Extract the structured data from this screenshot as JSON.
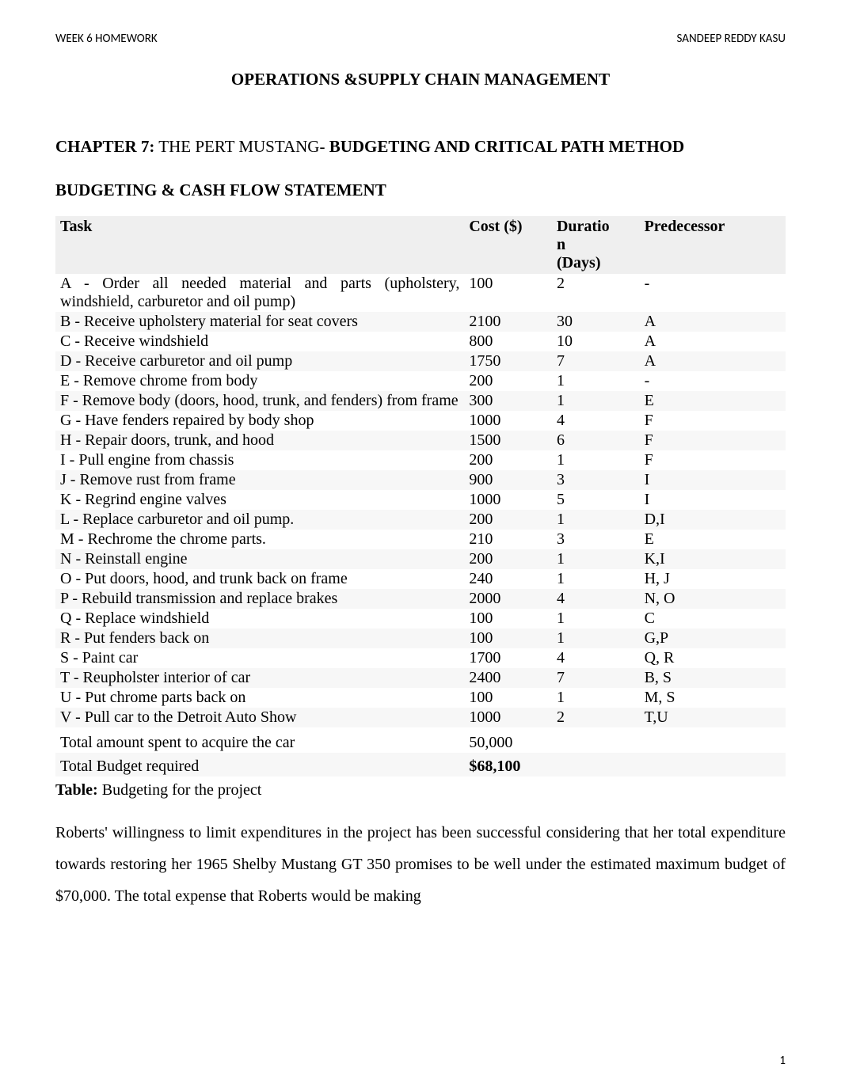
{
  "header": {
    "left": "WEEK 6 HOMEWORK",
    "right": "SANDEEP REDDY KASU"
  },
  "title": "OPERATIONS &SUPPLY CHAIN MANAGEMENT",
  "chapter_prefix": "CHAPTER 7:",
  "chapter_mid": " THE PERT MUSTANG- ",
  "chapter_suffix": "BUDGETING AND CRITICAL PATH METHOD",
  "section_heading": "BUDGETING & CASH FLOW STATEMENT",
  "table": {
    "columns": [
      "Task",
      "Cost ($)",
      "Duration (Days)",
      "Predecessor"
    ],
    "header_bg": "#efefef",
    "row_alt_bg": "#f7f7f7",
    "rows": [
      {
        "task": "A - Order all needed material and parts (upholstery, windshield, carburetor and oil pump)",
        "cost": "100",
        "duration": "2",
        "pred": "-"
      },
      {
        "task": "B - Receive upholstery material for seat covers",
        "cost": "2100",
        "duration": "30",
        "pred": "A"
      },
      {
        "task": "C - Receive windshield",
        "cost": "800",
        "duration": "10",
        "pred": "A"
      },
      {
        "task": "D - Receive carburetor and oil pump",
        "cost": "1750",
        "duration": "7",
        "pred": "A"
      },
      {
        "task": "E - Remove chrome from body",
        "cost": "200",
        "duration": "1",
        "pred": "-"
      },
      {
        "task": "F - Remove body (doors, hood, trunk, and fenders) from frame",
        "cost": "300",
        "duration": "1",
        "pred": "E"
      },
      {
        "task": "G - Have fenders repaired by body shop",
        "cost": "1000",
        "duration": "4",
        "pred": "F"
      },
      {
        "task": "H -  Repair doors, trunk, and hood",
        "cost": "1500",
        "duration": "6",
        "pred": "F"
      },
      {
        "task": "I - Pull engine from chassis",
        "cost": "200",
        "duration": "1",
        "pred": "F"
      },
      {
        "task": "J - Remove rust from frame",
        "cost": "900",
        "duration": "3",
        "pred": "I"
      },
      {
        "task": "K - Regrind engine valves",
        "cost": "1000",
        "duration": "5",
        "pred": "I"
      },
      {
        "task": "L - Replace carburetor and oil pump.",
        "cost": "200",
        "duration": "1",
        "pred": "D,I"
      },
      {
        "task": "M - Rechrome the chrome parts.",
        "cost": "210",
        "duration": "3",
        "pred": "E"
      },
      {
        "task": "N - Reinstall engine",
        "cost": "200",
        "duration": "1",
        "pred": "K,I"
      },
      {
        "task": "O - Put doors, hood, and trunk back on frame",
        "cost": "240",
        "duration": "1",
        "pred": "H, J"
      },
      {
        "task": "P - Rebuild transmission and replace brakes",
        "cost": "2000",
        "duration": "4",
        "pred": "N, O"
      },
      {
        "task": "Q - Replace windshield",
        "cost": "100",
        "duration": "1",
        "pred": "C"
      },
      {
        "task": "R - Put fenders back on",
        "cost": "100",
        "duration": "1",
        "pred": "G,P"
      },
      {
        "task": "S - Paint car",
        "cost": "1700",
        "duration": "4",
        "pred": "Q, R"
      },
      {
        "task": "T - Reupholster interior of car",
        "cost": "2400",
        "duration": "7",
        "pred": "B, S"
      },
      {
        "task": "U - Put chrome parts back on",
        "cost": "100",
        "duration": "1",
        "pred": "M, S"
      },
      {
        "task": "V - Pull car to the Detroit Auto Show",
        "cost": "1000",
        "duration": "2",
        "pred": "T,U"
      }
    ],
    "total_acquire": {
      "label": "Total amount spent to acquire the car",
      "value": "50,000"
    },
    "total_budget": {
      "label": "Total Budget required",
      "value": "$68,100"
    }
  },
  "table_caption_bold": "Table:",
  "table_caption_rest": " Budgeting for the project",
  "body_paragraph": "Roberts' willingness to limit expenditures in the project has been successful considering that her total expenditure towards restoring her 1965 Shelby Mustang GT 350 promises to be well under the estimated maximum budget of $70,000. The total expense that Roberts would be making",
  "footer": {
    "page_number": "1"
  }
}
